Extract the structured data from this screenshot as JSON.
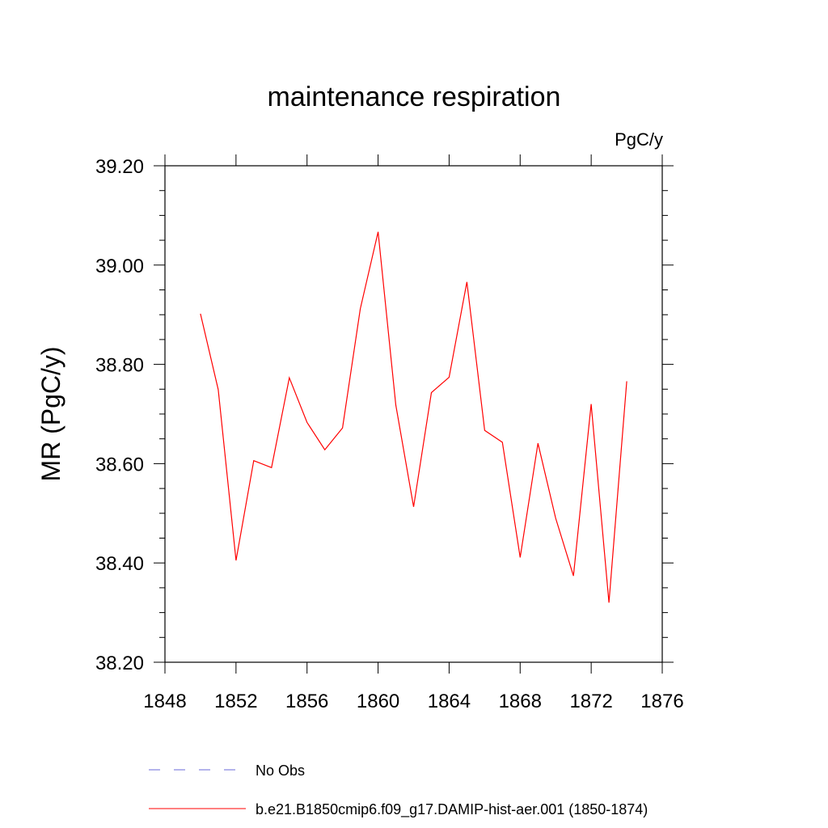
{
  "chart_data": {
    "type": "line",
    "title": "maintenance respiration",
    "units_label": "PgC/y",
    "xlabel": "",
    "ylabel": "MR  (PgC/y)",
    "xlim": [
      1848,
      1876
    ],
    "ylim": [
      38.2,
      39.2
    ],
    "x_ticks": [
      1848,
      1852,
      1856,
      1860,
      1864,
      1868,
      1872,
      1876
    ],
    "x_tick_labels": [
      "1848",
      "1852",
      "1856",
      "1860",
      "1864",
      "1868",
      "1872",
      "1876"
    ],
    "y_ticks": [
      38.2,
      38.4,
      38.6,
      38.8,
      39.0,
      39.2
    ],
    "y_tick_labels": [
      "38.20",
      "38.40",
      "38.60",
      "38.80",
      "39.00",
      "39.20"
    ],
    "grid": false,
    "legend_position": "bottom",
    "series": [
      {
        "name": "No Obs",
        "color": "#6a6ad8",
        "style": "dashed",
        "x": [],
        "values": []
      },
      {
        "name": "b.e21.B1850cmip6.f09_g17.DAMIP-hist-aer.001 (1850-1874)",
        "color": "#ff0000",
        "style": "solid",
        "x": [
          1850,
          1851,
          1852,
          1853,
          1854,
          1855,
          1856,
          1857,
          1858,
          1859,
          1860,
          1861,
          1862,
          1863,
          1864,
          1865,
          1866,
          1867,
          1868,
          1869,
          1870,
          1871,
          1872,
          1873,
          1874
        ],
        "values": [
          38.902,
          38.749,
          38.405,
          38.606,
          38.592,
          38.773,
          38.683,
          38.628,
          38.672,
          38.912,
          39.067,
          38.718,
          38.513,
          38.743,
          38.774,
          38.966,
          38.667,
          38.643,
          38.411,
          38.641,
          38.49,
          38.374,
          38.72,
          38.32,
          38.766
        ]
      }
    ]
  }
}
